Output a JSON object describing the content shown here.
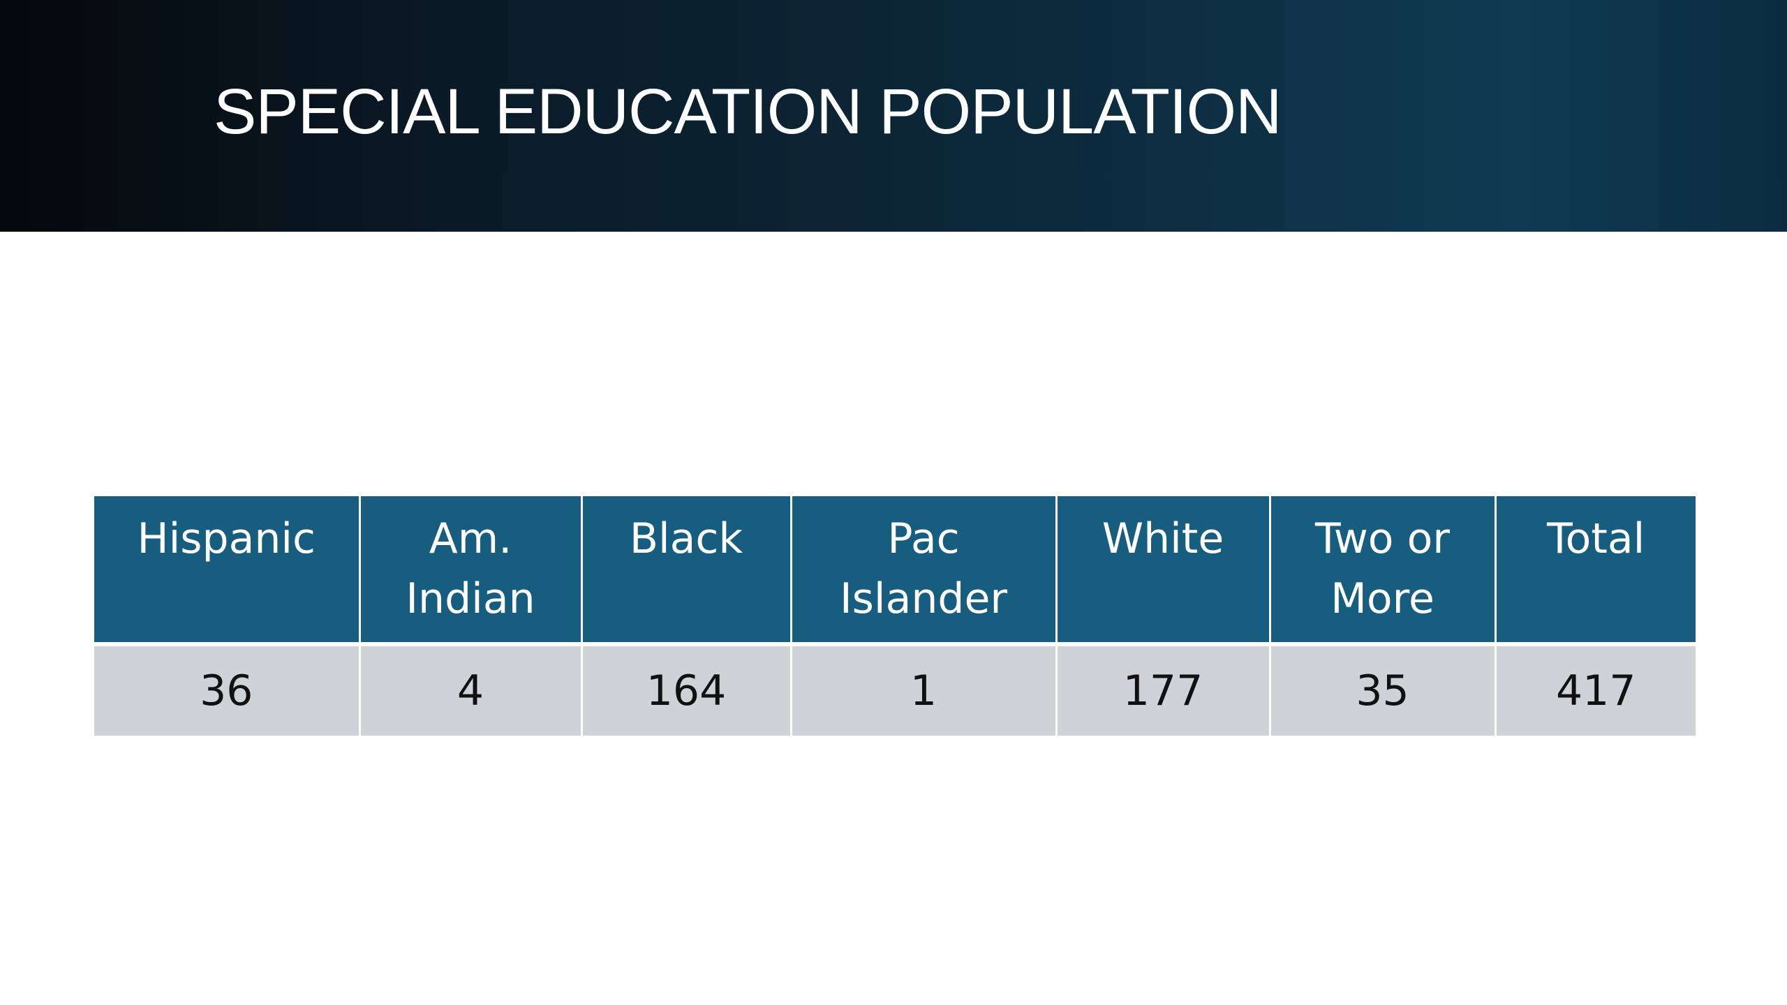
{
  "slide": {
    "title": "SPECIAL EDUCATION POPULATION"
  },
  "table": {
    "headers": [
      [
        "Hispanic"
      ],
      [
        "Am.",
        "Indian"
      ],
      [
        "Black"
      ],
      [
        "Pac",
        "Islander"
      ],
      [
        "White"
      ],
      [
        "Two or",
        "More"
      ],
      [
        "Total"
      ]
    ],
    "row": [
      "36",
      "4",
      "164",
      "1",
      "177",
      "35",
      "417"
    ]
  }
}
